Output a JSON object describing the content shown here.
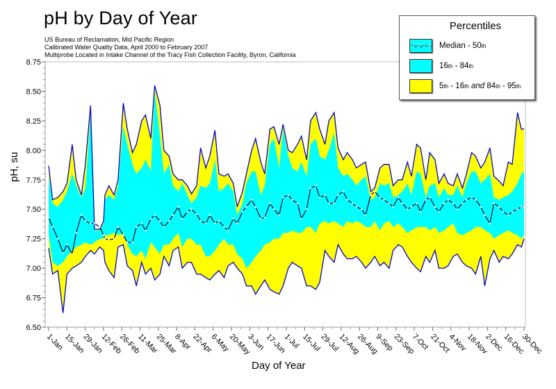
{
  "title": "pH by Day of Year",
  "subtitle_lines": [
    "US Bureau of Reclamation, Mid Pacific Region",
    "Calibrated Water Quality Data, April 2000 to February 2007",
    "Multiprobe Located in Intake Channel of the Tracy Fish Collection Facility, Byron, California"
  ],
  "legend": {
    "title": "Percentiles",
    "items": [
      {
        "name": "Median",
        "label": "Median - 50",
        "sup": "th",
        "color": "#00ffff"
      },
      {
        "name": "16-84",
        "label_parts": [
          "16",
          "th",
          " - 84",
          "th"
        ],
        "color": "#00ffff"
      },
      {
        "name": "5-16 and 84-95",
        "label_parts": [
          "5",
          "th",
          " - 16",
          "th",
          " and ",
          "84",
          "th",
          " - 95",
          "th"
        ],
        "color": "#ffff00"
      }
    ]
  },
  "colors": {
    "inner_band": "#00ffff",
    "outer_band": "#ffff00",
    "envelope_line": "#0000cc",
    "median_line": "#000033",
    "median_marker": "#ffffff",
    "axis": "#999999"
  },
  "chart_data": {
    "type": "area",
    "title": "pH by Day of Year",
    "xlabel": "Day of Year",
    "ylabel": "pH, su",
    "ylim": [
      6.5,
      8.75
    ],
    "yticks": [
      "6.50",
      "6.75",
      "7.00",
      "7.25",
      "7.50",
      "7.75",
      "8.00",
      "8.25",
      "8.50",
      "8.75"
    ],
    "xlim_day": [
      1,
      364
    ],
    "xtick_labels": [
      "1-Jan",
      "15-Jan",
      "29-Jan",
      "12-Feb",
      "26-Feb",
      "11-Mar",
      "25-Mar",
      "8-Apr",
      "22-Apr",
      "6-May",
      "20-May",
      "3-Jun",
      "17-Jun",
      "1-Jul",
      "15-Jul",
      "29-Jul",
      "12-Aug",
      "26-Aug",
      "9-Sep",
      "23-Sep",
      "7-Oct",
      "21-Oct",
      "4-Nov",
      "18-Nov",
      "2-Dec",
      "16-Dec",
      "30-Dec"
    ],
    "grid": false,
    "legend_position": "top-right",
    "x_day": [
      1,
      4,
      8,
      12,
      15,
      19,
      22,
      26,
      29,
      33,
      36,
      40,
      43,
      44,
      47,
      51,
      54,
      58,
      61,
      65,
      68,
      72,
      75,
      79,
      82,
      86,
      89,
      93,
      96,
      100,
      103,
      107,
      110,
      114,
      117,
      121,
      124,
      128,
      131,
      135,
      138,
      142,
      145,
      149,
      152,
      156,
      159,
      163,
      166,
      170,
      173,
      177,
      180,
      184,
      187,
      191,
      194,
      198,
      201,
      205,
      208,
      212,
      215,
      219,
      222,
      226,
      229,
      233,
      236,
      240,
      243,
      247,
      250,
      254,
      257,
      261,
      264,
      268,
      271,
      275,
      278,
      282,
      285,
      289,
      292,
      296,
      299,
      303,
      306,
      310,
      313,
      317,
      320,
      324,
      327,
      331,
      334,
      338,
      341,
      345,
      348,
      352,
      355,
      359,
      362,
      364
    ],
    "series": [
      {
        "name": "95th",
        "values": [
          7.87,
          7.58,
          7.6,
          7.65,
          7.72,
          8.05,
          7.75,
          7.62,
          7.88,
          8.38,
          7.33,
          7.33,
          7.4,
          7.62,
          7.7,
          7.62,
          7.75,
          8.4,
          8.18,
          7.98,
          8.05,
          8.25,
          8.3,
          8.1,
          8.55,
          8.38,
          8.0,
          7.95,
          7.8,
          7.75,
          7.75,
          7.7,
          7.63,
          7.7,
          8.02,
          7.85,
          7.95,
          8.17,
          7.8,
          7.78,
          7.8,
          7.72,
          7.52,
          7.65,
          7.8,
          8.0,
          8.1,
          7.9,
          7.8,
          8.18,
          8.2,
          8.05,
          8.22,
          8.0,
          7.98,
          8.05,
          8.12,
          7.92,
          8.25,
          8.32,
          8.18,
          8.05,
          8.25,
          8.32,
          8.02,
          7.92,
          7.98,
          7.92,
          7.85,
          7.88,
          7.9,
          7.65,
          7.68,
          7.85,
          7.88,
          7.88,
          7.7,
          7.75,
          7.75,
          7.9,
          7.78,
          8.05,
          8.02,
          7.75,
          7.98,
          7.92,
          7.72,
          7.8,
          7.72,
          7.7,
          7.8,
          7.68,
          7.8,
          7.98,
          7.95,
          7.85,
          7.9,
          8.02,
          7.78,
          7.74,
          7.7,
          7.9,
          7.88,
          8.32,
          8.18,
          8.18
        ]
      },
      {
        "name": "84th",
        "values": [
          7.78,
          7.55,
          7.52,
          7.58,
          7.65,
          7.8,
          7.7,
          7.6,
          7.68,
          8.3,
          7.32,
          7.32,
          7.38,
          7.58,
          7.62,
          7.58,
          7.7,
          8.2,
          8.05,
          7.88,
          7.8,
          7.85,
          7.92,
          7.82,
          8.5,
          8.12,
          7.8,
          7.88,
          7.7,
          7.65,
          7.72,
          7.62,
          7.55,
          7.6,
          7.7,
          7.68,
          7.72,
          7.92,
          7.65,
          7.68,
          7.72,
          7.65,
          7.45,
          7.55,
          7.72,
          7.82,
          7.82,
          7.62,
          7.7,
          8.05,
          8.1,
          7.85,
          8.18,
          7.95,
          7.85,
          7.82,
          7.9,
          7.78,
          8.05,
          8.1,
          7.95,
          7.92,
          8.0,
          8.15,
          7.85,
          7.78,
          7.8,
          7.75,
          7.7,
          7.75,
          7.78,
          7.58,
          7.6,
          7.72,
          7.7,
          7.72,
          7.6,
          7.62,
          7.65,
          7.72,
          7.62,
          7.82,
          7.8,
          7.6,
          7.7,
          7.72,
          7.6,
          7.68,
          7.62,
          7.62,
          7.7,
          7.6,
          7.72,
          7.82,
          7.82,
          7.72,
          7.75,
          7.8,
          7.6,
          7.58,
          7.6,
          7.62,
          7.65,
          7.72,
          7.8,
          7.82
        ]
      },
      {
        "name": "50th",
        "values": [
          7.43,
          7.35,
          7.25,
          7.13,
          7.2,
          7.12,
          7.3,
          7.45,
          7.4,
          7.38,
          7.38,
          7.35,
          7.28,
          7.25,
          7.24,
          7.25,
          7.35,
          7.28,
          7.22,
          7.22,
          7.35,
          7.38,
          7.32,
          7.42,
          7.45,
          7.4,
          7.35,
          7.4,
          7.45,
          7.52,
          7.42,
          7.48,
          7.5,
          7.46,
          7.4,
          7.38,
          7.45,
          7.38,
          7.4,
          7.35,
          7.32,
          7.42,
          7.38,
          7.48,
          7.52,
          7.58,
          7.52,
          7.42,
          7.43,
          7.55,
          7.5,
          7.45,
          7.6,
          7.62,
          7.58,
          7.55,
          7.42,
          7.5,
          7.68,
          7.7,
          7.6,
          7.62,
          7.55,
          7.55,
          7.62,
          7.65,
          7.58,
          7.55,
          7.52,
          7.5,
          7.45,
          7.62,
          7.65,
          7.6,
          7.58,
          7.55,
          7.52,
          7.6,
          7.55,
          7.5,
          7.52,
          7.55,
          7.48,
          7.58,
          7.6,
          7.52,
          7.48,
          7.55,
          7.58,
          7.55,
          7.5,
          7.55,
          7.58,
          7.6,
          7.58,
          7.52,
          7.45,
          7.38,
          7.55,
          7.52,
          7.48,
          7.45,
          7.48,
          7.5,
          7.52,
          7.52
        ]
      },
      {
        "name": "16th",
        "values": [
          7.28,
          7.05,
          7.02,
          7.05,
          7.1,
          7.15,
          7.18,
          7.2,
          7.22,
          7.2,
          7.22,
          7.25,
          7.25,
          7.28,
          7.28,
          7.3,
          7.28,
          7.3,
          7.2,
          7.12,
          7.1,
          7.15,
          7.08,
          7.22,
          7.18,
          7.12,
          7.2,
          7.2,
          7.25,
          7.3,
          7.18,
          7.25,
          7.25,
          7.2,
          7.2,
          7.1,
          7.1,
          7.15,
          7.2,
          7.25,
          7.2,
          7.2,
          7.12,
          7.08,
          7.0,
          7.05,
          7.1,
          7.15,
          7.2,
          7.22,
          7.25,
          7.25,
          7.3,
          7.3,
          7.32,
          7.3,
          7.3,
          7.35,
          7.35,
          7.3,
          7.38,
          7.4,
          7.38,
          7.4,
          7.38,
          7.35,
          7.4,
          7.38,
          7.4,
          7.38,
          7.35,
          7.35,
          7.4,
          7.32,
          7.38,
          7.4,
          7.35,
          7.38,
          7.35,
          7.3,
          7.32,
          7.35,
          7.35,
          7.35,
          7.32,
          7.35,
          7.3,
          7.32,
          7.35,
          7.38,
          7.3,
          7.28,
          7.3,
          7.32,
          7.35,
          7.35,
          7.32,
          7.3,
          7.25,
          7.28,
          7.3,
          7.32,
          7.3,
          7.28,
          7.25,
          7.28
        ]
      },
      {
        "name": "5th",
        "values": [
          7.17,
          6.95,
          6.98,
          6.62,
          6.95,
          7.0,
          7.02,
          7.05,
          7.1,
          7.15,
          7.12,
          7.18,
          7.15,
          7.05,
          6.98,
          6.92,
          7.18,
          7.2,
          7.02,
          6.98,
          6.85,
          7.05,
          6.95,
          7.0,
          6.9,
          6.95,
          7.1,
          7.02,
          7.15,
          7.18,
          7.0,
          7.05,
          7.05,
          6.95,
          6.95,
          6.92,
          6.9,
          6.95,
          6.98,
          6.92,
          7.02,
          7.05,
          7.0,
          6.95,
          6.85,
          6.85,
          6.78,
          6.85,
          6.9,
          6.82,
          6.8,
          6.78,
          6.85,
          7.0,
          7.05,
          7.02,
          7.0,
          6.85,
          6.85,
          6.82,
          6.88,
          7.15,
          7.1,
          7.05,
          7.2,
          7.12,
          7.08,
          7.08,
          7.1,
          7.05,
          7.0,
          7.05,
          7.1,
          7.02,
          7.05,
          7.0,
          7.15,
          7.2,
          7.18,
          7.1,
          7.05,
          7.0,
          6.97,
          7.1,
          7.05,
          7.15,
          7.0,
          7.0,
          7.02,
          7.1,
          7.12,
          7.05,
          7.02,
          7.0,
          6.95,
          7.1,
          6.85,
          7.08,
          7.15,
          7.05,
          7.1,
          7.08,
          7.12,
          7.2,
          7.18,
          7.25
        ]
      }
    ]
  }
}
